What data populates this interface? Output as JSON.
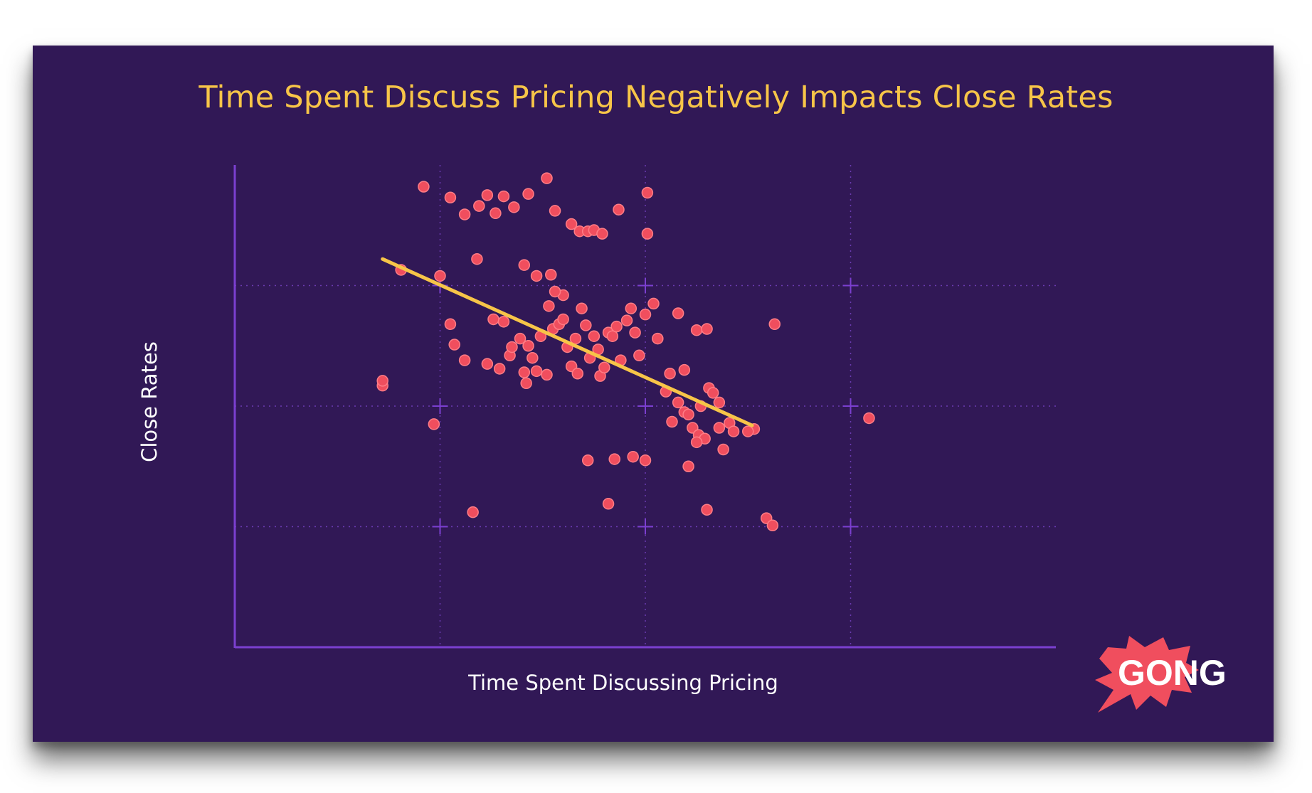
{
  "chart_data": {
    "type": "scatter",
    "title": "Time Spent Discuss Pricing Negatively Impacts Close Rates",
    "xlabel": "Time Spent Discussing Pricing",
    "ylabel": "Close Rates",
    "xlim": [
      0,
      4
    ],
    "ylim": [
      0,
      4
    ],
    "grid": true,
    "series": [
      {
        "name": "calls",
        "points": [
          [
            0.92,
            3.82
          ],
          [
            1.05,
            3.73
          ],
          [
            1.12,
            3.59
          ],
          [
            1.19,
            3.66
          ],
          [
            1.23,
            3.75
          ],
          [
            1.27,
            3.6
          ],
          [
            1.31,
            3.74
          ],
          [
            1.36,
            3.65
          ],
          [
            1.43,
            3.76
          ],
          [
            1.52,
            3.89
          ],
          [
            1.56,
            3.62
          ],
          [
            1.64,
            3.51
          ],
          [
            1.68,
            3.45
          ],
          [
            1.72,
            3.45
          ],
          [
            1.75,
            3.46
          ],
          [
            1.79,
            3.43
          ],
          [
            1.87,
            3.63
          ],
          [
            2.01,
            3.77
          ],
          [
            2.01,
            3.43
          ],
          [
            0.81,
            3.13
          ],
          [
            1.0,
            3.08
          ],
          [
            1.18,
            3.22
          ],
          [
            1.41,
            3.17
          ],
          [
            1.47,
            3.08
          ],
          [
            1.54,
            3.09
          ],
          [
            1.6,
            2.92
          ],
          [
            1.05,
            2.68
          ],
          [
            1.07,
            2.51
          ],
          [
            1.12,
            2.38
          ],
          [
            1.23,
            2.35
          ],
          [
            1.26,
            2.72
          ],
          [
            1.31,
            2.7
          ],
          [
            1.29,
            2.31
          ],
          [
            1.34,
            2.42
          ],
          [
            1.35,
            2.49
          ],
          [
            1.39,
            2.56
          ],
          [
            1.41,
            2.28
          ],
          [
            1.42,
            2.19
          ],
          [
            1.43,
            2.5
          ],
          [
            1.45,
            2.4
          ],
          [
            1.47,
            2.29
          ],
          [
            1.49,
            2.58
          ],
          [
            1.52,
            2.26
          ],
          [
            1.53,
            2.83
          ],
          [
            1.55,
            2.64
          ],
          [
            1.56,
            2.95
          ],
          [
            1.58,
            2.68
          ],
          [
            1.6,
            2.72
          ],
          [
            1.62,
            2.49
          ],
          [
            1.64,
            2.33
          ],
          [
            1.66,
            2.56
          ],
          [
            1.67,
            2.27
          ],
          [
            1.69,
            2.81
          ],
          [
            1.71,
            2.67
          ],
          [
            1.73,
            2.4
          ],
          [
            1.75,
            2.58
          ],
          [
            1.77,
            2.47
          ],
          [
            1.78,
            2.25
          ],
          [
            1.8,
            2.32
          ],
          [
            1.82,
            2.61
          ],
          [
            1.84,
            2.58
          ],
          [
            1.86,
            2.66
          ],
          [
            1.88,
            2.38
          ],
          [
            1.91,
            2.71
          ],
          [
            1.93,
            2.81
          ],
          [
            1.95,
            2.61
          ],
          [
            1.97,
            2.42
          ],
          [
            2.0,
            2.76
          ],
          [
            2.04,
            2.85
          ],
          [
            2.06,
            2.56
          ],
          [
            2.12,
            2.27
          ],
          [
            2.16,
            2.77
          ],
          [
            2.25,
            2.63
          ],
          [
            2.3,
            2.64
          ],
          [
            0.72,
            2.17
          ],
          [
            0.97,
            1.85
          ],
          [
            1.72,
            1.55
          ],
          [
            1.85,
            1.56
          ],
          [
            1.94,
            1.58
          ],
          [
            2.0,
            1.55
          ],
          [
            1.82,
            1.19
          ],
          [
            2.1,
            2.12
          ],
          [
            2.13,
            1.87
          ],
          [
            2.16,
            2.03
          ],
          [
            2.19,
            1.95
          ],
          [
            2.21,
            1.93
          ],
          [
            2.23,
            1.82
          ],
          [
            2.26,
            1.76
          ],
          [
            2.29,
            1.73
          ],
          [
            2.36,
            2.03
          ],
          [
            2.31,
            2.15
          ],
          [
            2.41,
            1.86
          ],
          [
            2.36,
            1.82
          ],
          [
            2.19,
            2.3
          ],
          [
            2.33,
            2.11
          ],
          [
            2.27,
            2.0
          ],
          [
            2.25,
            1.7
          ],
          [
            2.43,
            1.79
          ],
          [
            2.38,
            1.64
          ],
          [
            2.53,
            1.81
          ],
          [
            2.21,
            1.5
          ],
          [
            2.63,
            2.68
          ],
          [
            0.72,
            2.21
          ],
          [
            1.16,
            1.12
          ],
          [
            2.3,
            1.14
          ],
          [
            2.59,
            1.07
          ],
          [
            2.62,
            1.01
          ],
          [
            2.5,
            1.79
          ],
          [
            3.09,
            1.9
          ]
        ]
      }
    ],
    "trendline": {
      "x": [
        0.72,
        2.52
      ],
      "y": [
        3.22,
        1.84
      ]
    },
    "colors": {
      "background": "#311856",
      "title": "#f7c548",
      "points": "#f04e5e",
      "trendline": "#f7c548",
      "axis": "#7b3fd0",
      "grid": "#6a3bb0"
    }
  },
  "logo": {
    "text": "GONG"
  },
  "colors": {
    "logo_burst": "#f04e5e",
    "logo_text": "#ffffff"
  }
}
